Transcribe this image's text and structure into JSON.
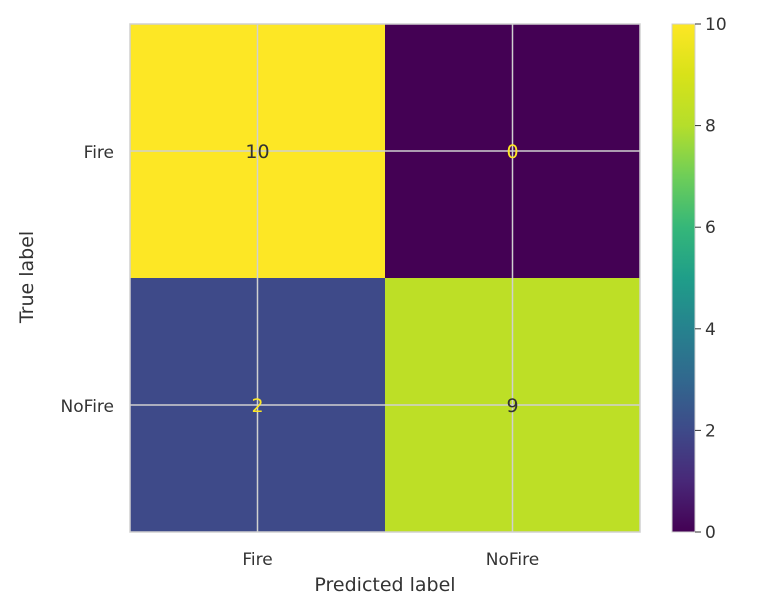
{
  "chart_data": {
    "type": "heatmap",
    "title": "",
    "xlabel": "Predicted label",
    "ylabel": "True label",
    "x_categories": [
      "Fire",
      "NoFire"
    ],
    "y_categories": [
      "Fire",
      "NoFire"
    ],
    "matrix": [
      [
        10,
        0
      ],
      [
        2,
        9
      ]
    ],
    "colormap": "viridis",
    "colorbar": {
      "min": 0,
      "max": 10,
      "ticks": [
        0,
        2,
        4,
        6,
        8,
        10
      ]
    },
    "grid": true,
    "colors": {
      "cell_fire_fire": "#fde725",
      "cell_fire_nofire": "#440154",
      "cell_nofire_fire": "#3e4a89",
      "cell_nofire_nofire": "#bddf26",
      "text_dark": "#333333",
      "text_light": "#fde725",
      "grid": "#d0d0d0"
    }
  }
}
